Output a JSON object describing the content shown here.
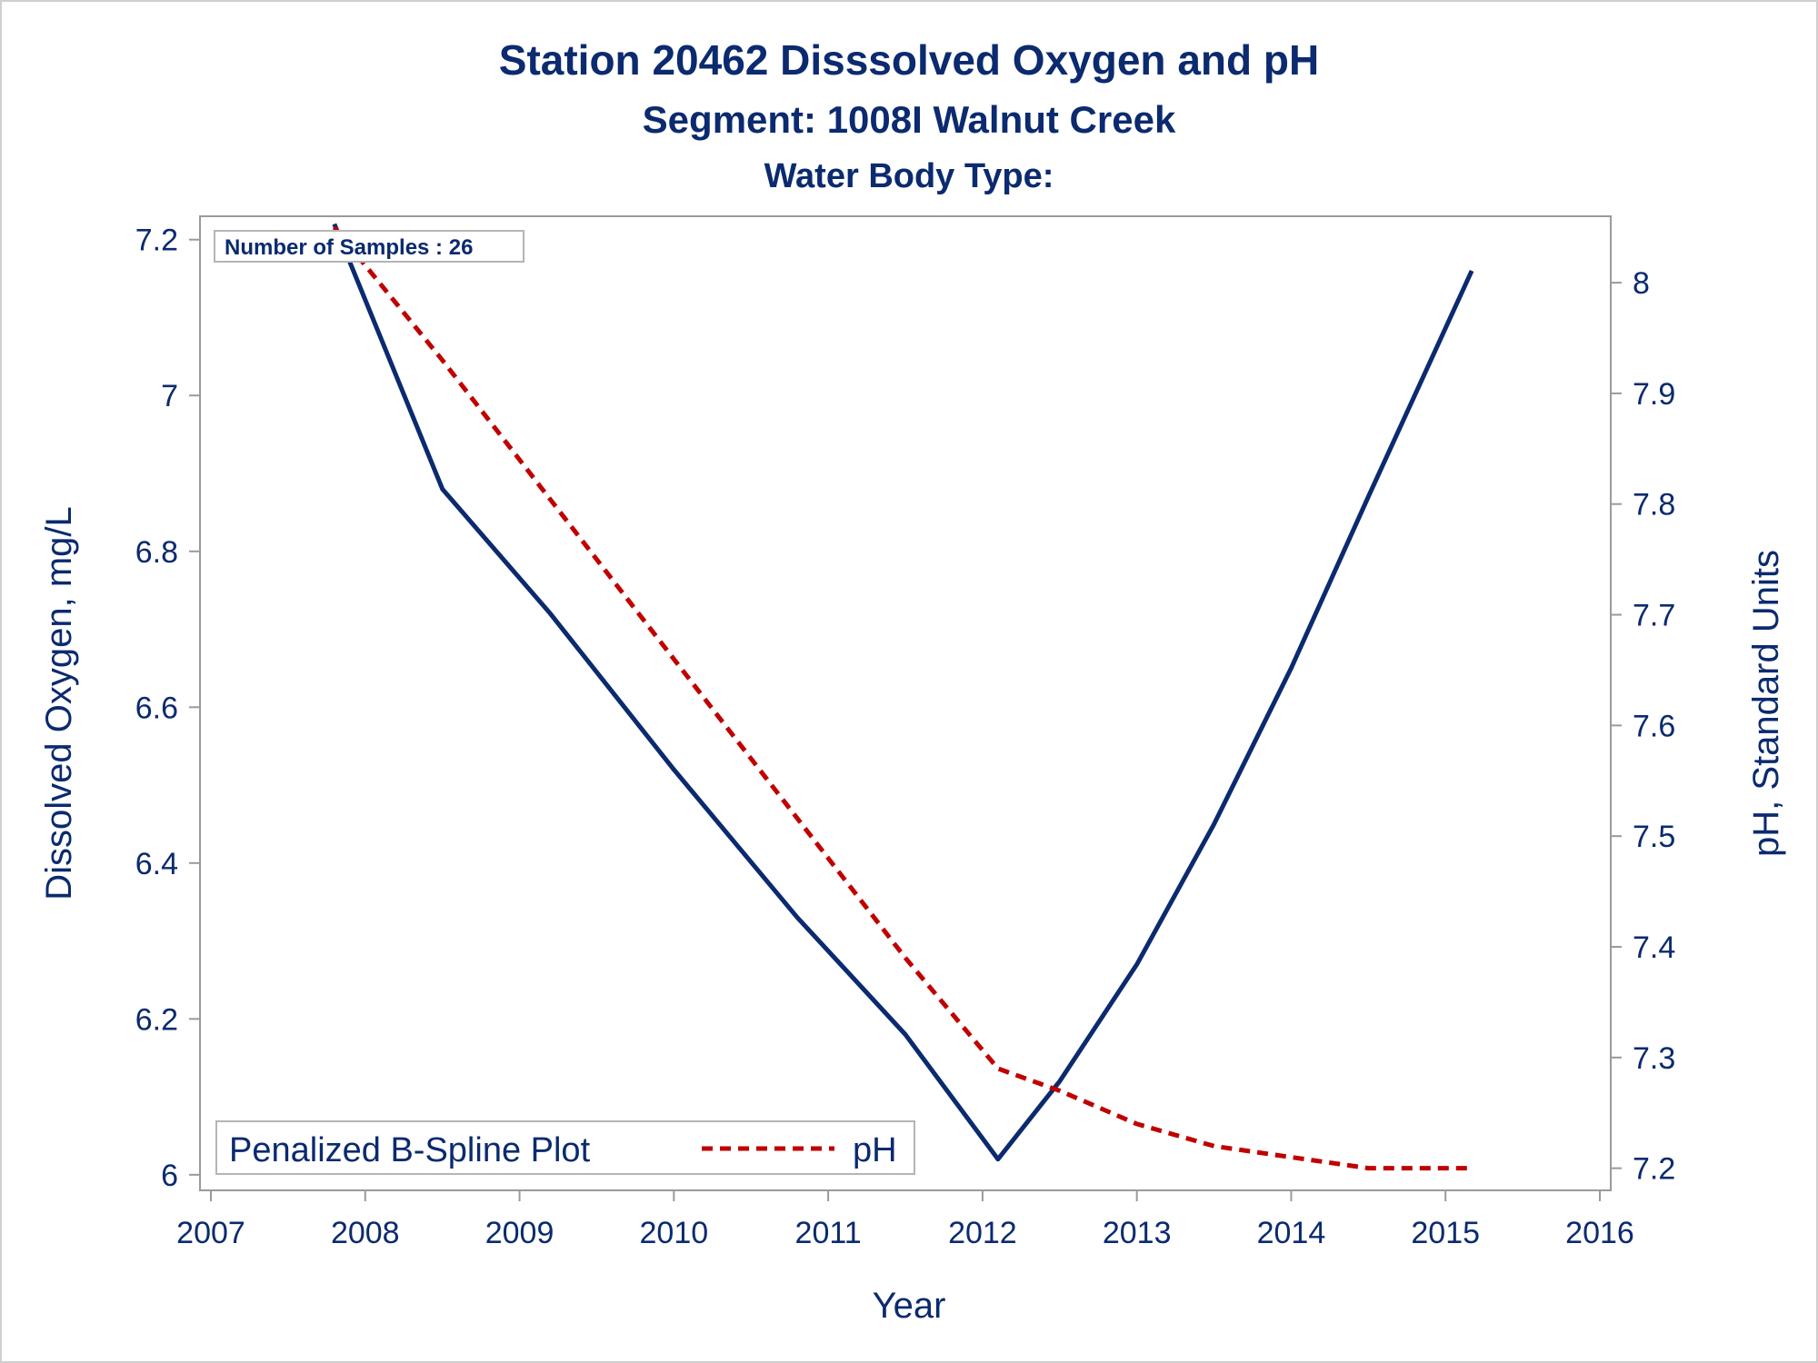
{
  "chart_data": {
    "type": "line",
    "title": "Station 20462   Disssolved Oxygen and pH",
    "subtitle": "Segment: 1008I  Walnut Creek",
    "subtitle2": "Water Body Type:",
    "xlabel": "Year",
    "ylabel": "Dissolved Oxygen, mg/L",
    "y2label": "pH, Standard Units",
    "xlim": [
      2007,
      2016
    ],
    "ylim": [
      5.98,
      7.23
    ],
    "y2lim": [
      7.18,
      8.06
    ],
    "xticks": [
      "2007",
      "2008",
      "2009",
      "2010",
      "2011",
      "2012",
      "2013",
      "2014",
      "2015",
      "2016"
    ],
    "yticks": [
      "6",
      "6.2",
      "6.4",
      "6.6",
      "6.8",
      "7",
      "7.2"
    ],
    "y2ticks": [
      "7.2",
      "7.3",
      "7.4",
      "7.5",
      "7.6",
      "7.7",
      "7.8",
      "7.9",
      "8"
    ],
    "annotation": "Number of Samples : 26",
    "grid": false,
    "legend_placement": "bottom-left",
    "legend_title": "Penalized B-Spline Plot",
    "series": [
      {
        "name": "",
        "axis": "left",
        "color": "#0b2a6f",
        "style": "solid",
        "x": [
          2007.8,
          2008.5,
          2009.2,
          2010.0,
          2010.8,
          2011.5,
          2012.1,
          2012.5,
          2013.0,
          2013.5,
          2014.0,
          2014.5,
          2015.17
        ],
        "y": [
          7.22,
          6.88,
          6.72,
          6.52,
          6.33,
          6.18,
          6.02,
          6.12,
          6.27,
          6.45,
          6.65,
          6.87,
          7.16
        ]
      },
      {
        "name": "pH",
        "axis": "right",
        "color": "#c00000",
        "style": "dashed",
        "x": [
          2007.8,
          2008.5,
          2009.0,
          2010.0,
          2011.0,
          2011.5,
          2012.1,
          2012.5,
          2013.0,
          2013.5,
          2014.0,
          2014.5,
          2015.17
        ],
        "y": [
          8.05,
          7.93,
          7.84,
          7.66,
          7.48,
          7.39,
          7.29,
          7.27,
          7.24,
          7.22,
          7.21,
          7.2,
          7.2
        ]
      }
    ]
  }
}
